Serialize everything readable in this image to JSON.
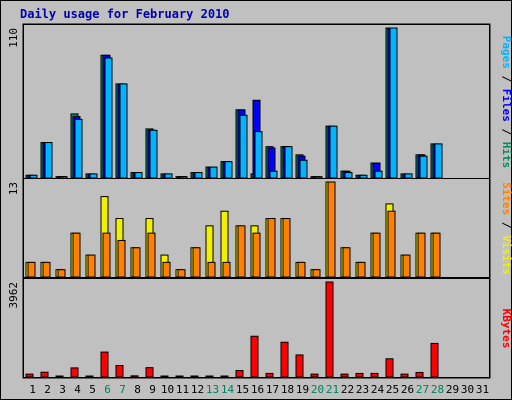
{
  "chart_data": {
    "type": "bar",
    "title": "Daily usage for February 2010",
    "categories": [
      "1",
      "2",
      "3",
      "4",
      "5",
      "6",
      "7",
      "8",
      "9",
      "10",
      "11",
      "12",
      "13",
      "14",
      "15",
      "16",
      "17",
      "18",
      "19",
      "20",
      "21",
      "22",
      "23",
      "24",
      "25",
      "26",
      "27",
      "28",
      "29",
      "30",
      "31"
    ],
    "weekend_days": [
      "6",
      "7",
      "13",
      "14",
      "20",
      "21",
      "27",
      "28"
    ],
    "panels": [
      {
        "id": "hits",
        "max_label": "110",
        "ylim": [
          0,
          110
        ],
        "right_label": {
          "parts": [
            {
              "text": "Pages",
              "color": "#00b4ff"
            },
            {
              "text": " / ",
              "color": "#000000"
            },
            {
              "text": "Files",
              "color": "#0000ff"
            },
            {
              "text": " / ",
              "color": "#000000"
            },
            {
              "text": "Hits",
              "color": "#009060"
            }
          ]
        },
        "series": [
          {
            "name": "Hits",
            "color": "#009060",
            "values": [
              2,
              26,
              1,
              47,
              3,
              90,
              69,
              4,
              36,
              3,
              1,
              4,
              8,
              12,
              50,
              3,
              23,
              23,
              17,
              1,
              38,
              5,
              2,
              11,
              110,
              3,
              17,
              25,
              0,
              0,
              0
            ]
          },
          {
            "name": "Files",
            "color": "#0000ff",
            "values": [
              2,
              26,
              1,
              45,
              3,
              90,
              69,
              4,
              35,
              3,
              1,
              4,
              8,
              12,
              50,
              57,
              22,
              23,
              16,
              1,
              38,
              5,
              2,
              11,
              110,
              3,
              17,
              25,
              0,
              0,
              0
            ]
          },
          {
            "name": "Pages",
            "color": "#00b4ff",
            "values": [
              2,
              26,
              1,
              43,
              3,
              88,
              69,
              4,
              35,
              3,
              1,
              4,
              8,
              12,
              46,
              34,
              5,
              23,
              13,
              1,
              38,
              4,
              2,
              5,
              110,
              3,
              16,
              25,
              0,
              0,
              0
            ]
          }
        ]
      },
      {
        "id": "visits",
        "max_label": "13",
        "ylim": [
          0,
          13
        ],
        "right_label": {
          "parts": [
            {
              "text": "Sites",
              "color": "#ff8000"
            },
            {
              "text": " / ",
              "color": "#000000"
            },
            {
              "text": "Visits",
              "color": "#f0f000"
            }
          ]
        },
        "series": [
          {
            "name": "Visits",
            "color": "#f0f000",
            "values": [
              2,
              2,
              1,
              6,
              3,
              11,
              8,
              4,
              8,
              3,
              1,
              4,
              7,
              9,
              7,
              7,
              8,
              8,
              2,
              1,
              13,
              4,
              2,
              6,
              10,
              3,
              6,
              6,
              0,
              0,
              0
            ]
          },
          {
            "name": "Sites",
            "color": "#ff8000",
            "values": [
              2,
              2,
              1,
              6,
              3,
              6,
              5,
              4,
              6,
              2,
              1,
              4,
              2,
              2,
              7,
              6,
              8,
              8,
              2,
              1,
              13,
              4,
              2,
              6,
              9,
              3,
              6,
              6,
              0,
              0,
              0
            ]
          }
        ]
      },
      {
        "id": "kbytes",
        "max_label": "3962",
        "ylim": [
          0,
          3962
        ],
        "right_label": {
          "parts": [
            {
              "text": "KBytes",
              "color": "#ff0000"
            }
          ]
        },
        "series": [
          {
            "name": "KBytes",
            "color": "#ff0000",
            "values": [
              120,
              200,
              30,
              380,
              40,
              1040,
              480,
              50,
              390,
              30,
              30,
              30,
              30,
              30,
              270,
              1700,
              150,
              1450,
              920,
              120,
              3962,
              120,
              150,
              150,
              760,
              120,
              190,
              1400,
              0,
              0,
              0
            ]
          }
        ]
      }
    ],
    "grid": false,
    "legend": "right-vertical"
  }
}
